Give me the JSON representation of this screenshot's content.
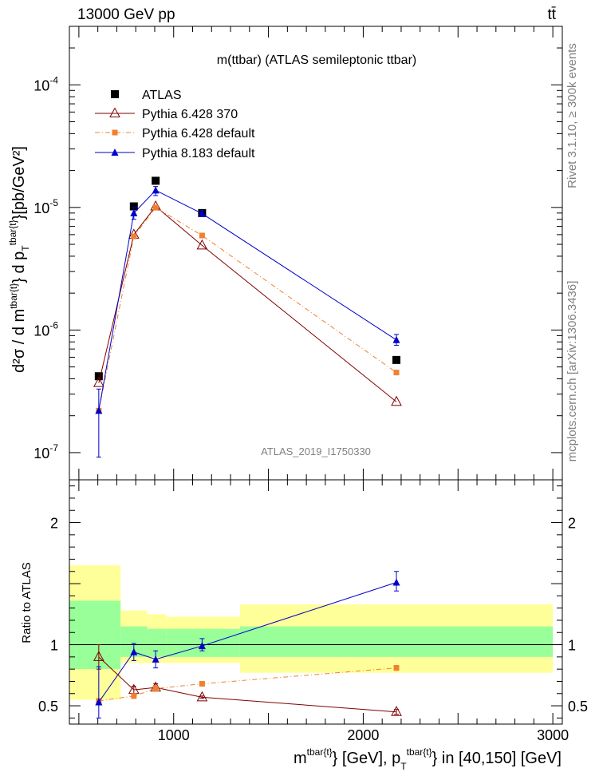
{
  "header": {
    "left": "13000 GeV pp",
    "right": "tt̄"
  },
  "side_labels": {
    "rivet": "Rivet 3.1.10, ≥ 300k events",
    "mcplots": "mcplots.cern.ch [arXiv:1306.3436]"
  },
  "chart_data": [
    {
      "type": "line",
      "title": "m(ttbar) (ATLAS semileptonic ttbar)",
      "watermark": "ATLAS_2019_I1750330",
      "ylabel": {
        "lead": "d²σ / d m",
        "sup1": "tbar{t}",
        "mid": "} d p",
        "sub": "T",
        "sup2": "tbar{t}",
        "tail": "}[pb/GeV²]"
      },
      "yscale": "log",
      "ylim": [
        6e-08,
        0.0003
      ],
      "xlim": [
        450,
        3050
      ],
      "yticks": [
        {
          "label": "10",
          "exp": "-7"
        },
        {
          "label": "10",
          "exp": "-6"
        },
        {
          "label": "10",
          "exp": "-5"
        },
        {
          "label": "10",
          "exp": "-4"
        }
      ],
      "legend": {
        "position": "top-left"
      },
      "x": [
        605,
        790,
        905,
        1150,
        2175
      ],
      "series": [
        {
          "name": "ATLAS",
          "color": "#000000",
          "marker": "square",
          "values": [
            4.2e-07,
            1.02e-05,
            1.65e-05,
            9e-06,
            5.7e-07
          ]
        },
        {
          "name": "Pythia 6.428 370",
          "color": "#800000",
          "marker": "open-triangle",
          "values": [
            3.7e-07,
            6e-06,
            1.02e-05,
            4.9e-06,
            2.6e-07
          ]
        },
        {
          "name": "Pythia 6.428 default",
          "color": "#f08030",
          "marker": "small-square",
          "dash": true,
          "values": [
            2.2e-07,
            5.8e-06,
            1e-05,
            5.9e-06,
            4.5e-07
          ]
        },
        {
          "name": "Pythia 8.183 default",
          "color": "#0000cc",
          "marker": "triangle",
          "values": [
            2.2e-07,
            9e-06,
            1.38e-05,
            8.9e-06,
            8.3e-07
          ],
          "err_low": [
            9.2e-08,
            8e-06,
            1.25e-05,
            8.4e-06,
            7.5e-07
          ],
          "err_high": [
            3.3e-07,
            1e-05,
            1.48e-05,
            9.4e-06,
            9.2e-07
          ]
        }
      ]
    },
    {
      "type": "line",
      "ylabel": "Ratio to ATLAS",
      "xlabel": {
        "a": "m",
        "sup1": "tbar{t}",
        "b": "} [GeV], p",
        "sub": "T",
        "sup2": "tbar{t}",
        "c": "} in [40,150] [GeV]"
      },
      "xlim": [
        450,
        3050
      ],
      "ylim": [
        0.35,
        2.35
      ],
      "xticks": [
        1000,
        2000,
        3000
      ],
      "yticks": [
        0.5,
        1,
        2
      ],
      "bins": [
        [
          450,
          720
        ],
        [
          720,
          860
        ],
        [
          860,
          960
        ],
        [
          960,
          1350
        ],
        [
          1350,
          3000
        ]
      ],
      "band_inner": [
        [
          0.8,
          1.36
        ],
        [
          0.9,
          1.15
        ],
        [
          0.9,
          1.13
        ],
        [
          0.9,
          1.13
        ],
        [
          0.9,
          1.15
        ]
      ],
      "band_outer": [
        [
          0.55,
          1.65
        ],
        [
          0.85,
          1.28
        ],
        [
          0.85,
          1.25
        ],
        [
          0.85,
          1.23
        ],
        [
          0.77,
          1.33
        ]
      ],
      "x": [
        605,
        790,
        905,
        1150,
        2175
      ],
      "series": [
        {
          "name": "Pythia 6.428 370",
          "color": "#800000",
          "marker": "open-triangle",
          "values": [
            0.9,
            0.63,
            0.65,
            0.57,
            0.45
          ],
          "err_low": [
            0.8,
            0.6,
            0.62,
            0.56,
            0.43
          ],
          "err_high": [
            1.0,
            0.66,
            0.68,
            0.58,
            0.47
          ]
        },
        {
          "name": "Pythia 6.428 default",
          "color": "#f08030",
          "marker": "small-square",
          "dash": true,
          "values": [
            0.54,
            0.58,
            0.64,
            0.68,
            0.81
          ],
          "err_low": [
            0.53,
            0.56,
            0.62,
            0.67,
            0.79
          ],
          "err_high": [
            0.55,
            0.6,
            0.66,
            0.69,
            0.83
          ]
        },
        {
          "name": "Pythia 8.183 default",
          "color": "#0000cc",
          "marker": "triangle",
          "values": [
            0.53,
            0.94,
            0.88,
            0.99,
            1.51
          ],
          "err_low": [
            0.4,
            0.87,
            0.81,
            0.95,
            1.44
          ],
          "err_high": [
            0.82,
            1.01,
            0.95,
            1.05,
            1.6
          ]
        }
      ]
    }
  ]
}
